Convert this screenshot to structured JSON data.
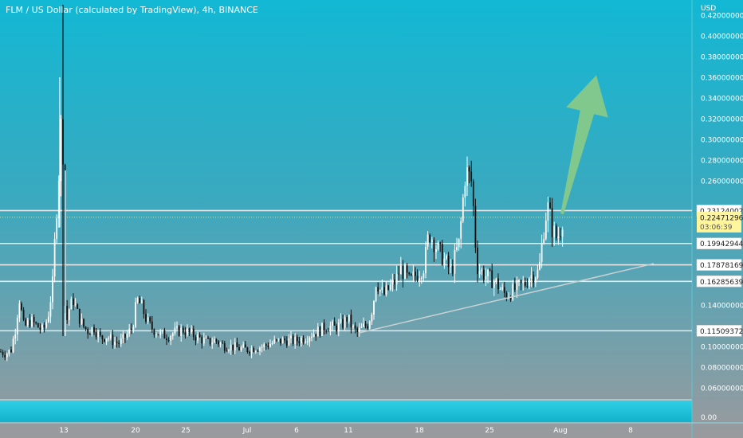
{
  "header": {
    "title": "FLM / US Dollar (calculated by TradingView), 4h, BINANCE"
  },
  "price_axis": {
    "currency": "USD",
    "tick_labels": [
      "0.42000000",
      "0.40000000",
      "0.38000000",
      "0.36000000",
      "0.34000000",
      "0.32000000",
      "0.30000000",
      "0.28000000",
      "0.26000000",
      "0.14000000",
      "0.10000000",
      "0.08000000",
      "0.06000000"
    ],
    "volume_tick": "0.00"
  },
  "time_axis": {
    "labels": [
      "13",
      "20",
      "25",
      "Jul",
      "6",
      "11",
      "18",
      "25",
      "Aug",
      "8"
    ]
  },
  "colors": {
    "bg_top": "#12b8d4",
    "bg_bottom": "#9a9a9d",
    "candle_up": "#ffffff",
    "candle_down": "#111111",
    "level_line": "#e8e8e8",
    "arrow": "#86c98a",
    "current_badge": "#fff59d",
    "volume_band": "#19c3d9"
  },
  "chart_data": {
    "type": "candlestick",
    "title": "FLM / US Dollar (calculated by TradingView), 4h, BINANCE",
    "ylabel": "USD",
    "ylim": [
      0.05,
      0.43
    ],
    "xlim": [
      0,
      930
    ],
    "x_ticks": [
      {
        "label": "13",
        "x": 80
      },
      {
        "label": "20",
        "x": 170
      },
      {
        "label": "25",
        "x": 233
      },
      {
        "label": "Jul",
        "x": 310
      },
      {
        "label": "6",
        "x": 372
      },
      {
        "label": "11",
        "x": 437
      },
      {
        "label": "18",
        "x": 526
      },
      {
        "label": "25",
        "x": 614
      },
      {
        "label": "Aug",
        "x": 703
      },
      {
        "label": "8",
        "x": 791
      }
    ],
    "price_levels": [
      {
        "label": "0.23124002",
        "value": 0.23124
      },
      {
        "label": "0.19942944",
        "value": 0.19943
      },
      {
        "label": "0.17878169",
        "value": 0.17878
      },
      {
        "label": "0.16285639",
        "value": 0.16286
      },
      {
        "label": "0.11509372",
        "value": 0.11509
      }
    ],
    "current_price": {
      "label": "0.22471296",
      "value": 0.22471,
      "countdown": "03:06:39"
    },
    "trendline": {
      "from": [
        450,
        0.113
      ],
      "to": [
        820,
        0.18
      ]
    },
    "arrow": {
      "from": [
        705,
        0.228
      ],
      "to": [
        748,
        0.362
      ]
    },
    "price_path": [
      [
        0,
        0.095
      ],
      [
        8,
        0.093
      ],
      [
        14,
        0.097
      ],
      [
        20,
        0.12
      ],
      [
        24,
        0.148
      ],
      [
        30,
        0.118
      ],
      [
        38,
        0.125
      ],
      [
        46,
        0.12
      ],
      [
        54,
        0.115
      ],
      [
        60,
        0.128
      ],
      [
        66,
        0.16
      ],
      [
        70,
        0.22
      ],
      [
        74,
        0.27
      ],
      [
        78,
        0.34
      ],
      [
        80,
        0.24
      ],
      [
        82,
        0.115
      ],
      [
        86,
        0.135
      ],
      [
        92,
        0.145
      ],
      [
        98,
        0.13
      ],
      [
        104,
        0.12
      ],
      [
        110,
        0.115
      ],
      [
        118,
        0.118
      ],
      [
        126,
        0.108
      ],
      [
        134,
        0.11
      ],
      [
        142,
        0.105
      ],
      [
        150,
        0.103
      ],
      [
        158,
        0.11
      ],
      [
        166,
        0.118
      ],
      [
        172,
        0.145
      ],
      [
        178,
        0.138
      ],
      [
        184,
        0.125
      ],
      [
        190,
        0.118
      ],
      [
        200,
        0.112
      ],
      [
        210,
        0.11
      ],
      [
        220,
        0.114
      ],
      [
        230,
        0.116
      ],
      [
        240,
        0.112
      ],
      [
        250,
        0.108
      ],
      [
        260,
        0.104
      ],
      [
        270,
        0.106
      ],
      [
        280,
        0.101
      ],
      [
        290,
        0.1
      ],
      [
        300,
        0.098
      ],
      [
        310,
        0.097
      ],
      [
        320,
        0.099
      ],
      [
        330,
        0.1
      ],
      [
        340,
        0.103
      ],
      [
        350,
        0.105
      ],
      [
        360,
        0.106
      ],
      [
        370,
        0.105
      ],
      [
        380,
        0.108
      ],
      [
        390,
        0.112
      ],
      [
        400,
        0.115
      ],
      [
        410,
        0.12
      ],
      [
        420,
        0.118
      ],
      [
        430,
        0.122
      ],
      [
        436,
        0.128
      ],
      [
        442,
        0.118
      ],
      [
        448,
        0.113
      ],
      [
        455,
        0.118
      ],
      [
        462,
        0.122
      ],
      [
        468,
        0.14
      ],
      [
        472,
        0.165
      ],
      [
        476,
        0.155
      ],
      [
        482,
        0.15
      ],
      [
        490,
        0.158
      ],
      [
        496,
        0.163
      ],
      [
        502,
        0.175
      ],
      [
        508,
        0.17
      ],
      [
        514,
        0.162
      ],
      [
        520,
        0.168
      ],
      [
        526,
        0.172
      ],
      [
        532,
        0.178
      ],
      [
        538,
        0.21
      ],
      [
        542,
        0.205
      ],
      [
        548,
        0.195
      ],
      [
        554,
        0.188
      ],
      [
        560,
        0.18
      ],
      [
        566,
        0.172
      ],
      [
        572,
        0.19
      ],
      [
        576,
        0.2
      ],
      [
        580,
        0.235
      ],
      [
        584,
        0.27
      ],
      [
        588,
        0.265
      ],
      [
        592,
        0.258
      ],
      [
        596,
        0.205
      ],
      [
        598,
        0.178
      ],
      [
        604,
        0.172
      ],
      [
        610,
        0.168
      ],
      [
        616,
        0.165
      ],
      [
        622,
        0.162
      ],
      [
        628,
        0.155
      ],
      [
        634,
        0.15
      ],
      [
        640,
        0.152
      ],
      [
        646,
        0.155
      ],
      [
        652,
        0.158
      ],
      [
        658,
        0.16
      ],
      [
        664,
        0.168
      ],
      [
        670,
        0.17
      ],
      [
        676,
        0.172
      ],
      [
        680,
        0.2
      ],
      [
        684,
        0.225
      ],
      [
        688,
        0.235
      ],
      [
        692,
        0.215
      ],
      [
        698,
        0.205
      ],
      [
        702,
        0.21
      ],
      [
        706,
        0.225
      ]
    ]
  }
}
